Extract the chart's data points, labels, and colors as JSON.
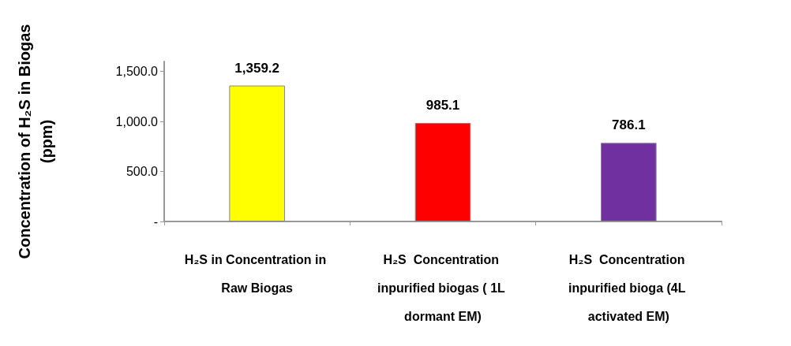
{
  "chart_data": {
    "type": "bar",
    "ylabel": "Concentration of H₂S in Biogas\n(ppm)",
    "categories": [
      "H₂S in Concentration in Raw Biogas",
      "H₂S  Concentration inpurified biogas ( 1L dormant EM)",
      "H₂S  Concentration inpurified bioga (4L activated EM)"
    ],
    "values": [
      1359.2,
      985.1,
      786.1
    ],
    "colors": [
      "#ffff00",
      "#ff0000",
      "#7030a0"
    ],
    "value_labels": [
      "1,359.2",
      "985.1",
      "786.1"
    ],
    "ylim": [
      0,
      1600
    ],
    "yticks": [
      {
        "value": 0,
        "label": "-"
      },
      {
        "value": 500,
        "label": "500.0"
      },
      {
        "value": 1000,
        "label": "1,000.0"
      },
      {
        "value": 1500,
        "label": "1,500.0"
      }
    ],
    "grid": false
  }
}
